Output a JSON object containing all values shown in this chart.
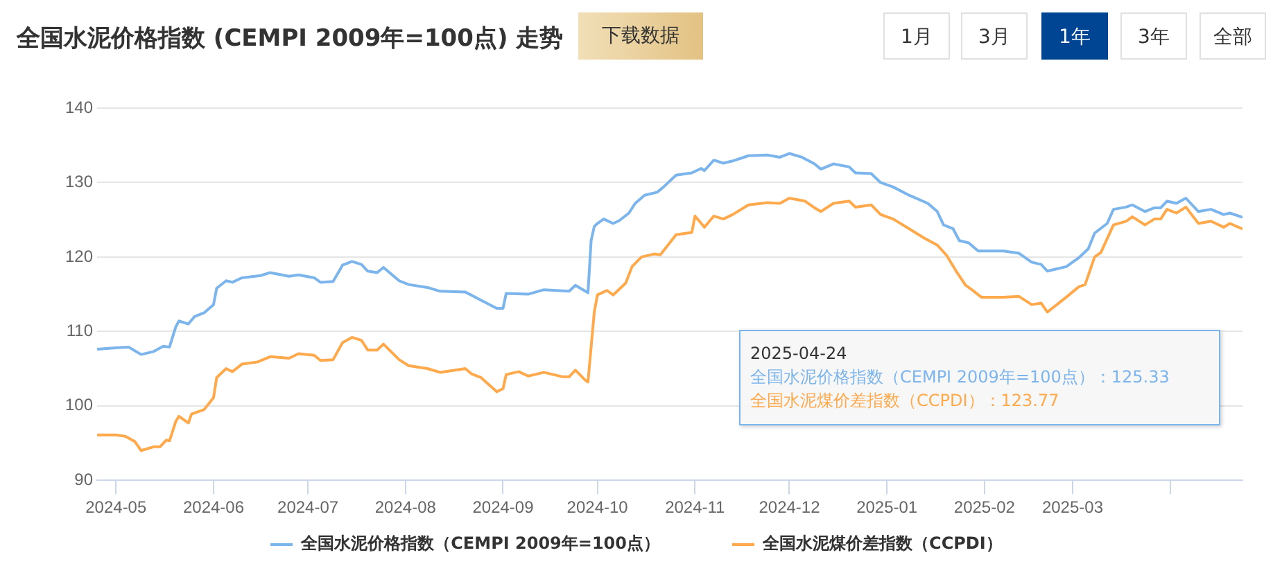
{
  "chart_data": {
    "type": "line",
    "title": "全国水泥价格指数 (CEMPI 2009年=100点) 走势",
    "annotations": [
      "下载数据",
      "1月",
      "3月",
      "1年",
      "3年",
      "全部",
      "2025-04-24",
      "全国水泥价格指数（CEMPI 2009年=100点）：125.33",
      "全国水泥煤价差指数（CCPDI）：123.77"
    ],
    "xlim": [
      "2024-04-25",
      "2025-04-24"
    ],
    "xticks": [
      {
        "value": "2024-05-01",
        "label": "2024-05"
      },
      {
        "value": "2024-06-01",
        "label": "2024-06"
      },
      {
        "value": "2024-07-01",
        "label": "2024-07"
      },
      {
        "value": "2024-08-01",
        "label": "2024-08"
      },
      {
        "value": "2024-09-01",
        "label": "2024-09"
      },
      {
        "value": "2024-10-01",
        "label": "2024-10"
      },
      {
        "value": "2024-11-01",
        "label": "2024-11"
      },
      {
        "value": "2024-12-01",
        "label": "2024-12"
      },
      {
        "value": "2025-01-01",
        "label": "2025-01"
      },
      {
        "value": "2025-02-01",
        "label": "2025-02"
      },
      {
        "value": "2025-03-01",
        "label": "2025-03"
      },
      {
        "value": "2025-04-01",
        "label": null
      }
    ],
    "ylim": [
      90,
      140
    ],
    "yticks": [
      90,
      100,
      110,
      120,
      130,
      140
    ],
    "grid": "y",
    "legend": "bottom",
    "series": [
      {
        "name": "全国水泥价格指数（CEMPI 2009年=100点）",
        "color": "#7cb5ec",
        "x": [
          "2024-04-25",
          "2024-05-01",
          "2024-05-05",
          "2024-05-09",
          "2024-05-13",
          "2024-05-16",
          "2024-05-18",
          "2024-05-20",
          "2024-05-21",
          "2024-05-24",
          "2024-05-26",
          "2024-05-29",
          "2024-06-01",
          "2024-06-02",
          "2024-06-05",
          "2024-06-07",
          "2024-06-10",
          "2024-06-16",
          "2024-06-19",
          "2024-06-25",
          "2024-06-28",
          "2024-07-03",
          "2024-07-05",
          "2024-07-09",
          "2024-07-12",
          "2024-07-15",
          "2024-07-18",
          "2024-07-20",
          "2024-07-23",
          "2024-07-25",
          "2024-07-30",
          "2024-08-02",
          "2024-08-08",
          "2024-08-12",
          "2024-08-20",
          "2024-08-25",
          "2024-08-30",
          "2024-09-01",
          "2024-09-02",
          "2024-09-09",
          "2024-09-14",
          "2024-09-22",
          "2024-09-24",
          "2024-09-28",
          "2024-09-29",
          "2024-09-30",
          "2024-10-01",
          "2024-10-03",
          "2024-10-06",
          "2024-10-08",
          "2024-10-11",
          "2024-10-13",
          "2024-10-16",
          "2024-10-20",
          "2024-10-22",
          "2024-10-26",
          "2024-10-31",
          "2024-11-03",
          "2024-11-04",
          "2024-11-07",
          "2024-11-10",
          "2024-11-13",
          "2024-11-18",
          "2024-11-24",
          "2024-11-28",
          "2024-12-01",
          "2024-12-05",
          "2024-12-09",
          "2024-12-11",
          "2024-12-15",
          "2024-12-20",
          "2024-12-22",
          "2024-12-27",
          "2024-12-30",
          "2025-01-03",
          "2025-01-08",
          "2025-01-14",
          "2025-01-17",
          "2025-01-19",
          "2025-01-22",
          "2025-01-24",
          "2025-01-27",
          "2025-01-30",
          "2025-02-07",
          "2025-02-12",
          "2025-02-16",
          "2025-02-19",
          "2025-02-21",
          "2025-02-27",
          "2025-03-03",
          "2025-03-06",
          "2025-03-08",
          "2025-03-12",
          "2025-03-14",
          "2025-03-18",
          "2025-03-20",
          "2025-03-24",
          "2025-03-27",
          "2025-03-29",
          "2025-03-31",
          "2025-04-03",
          "2025-04-06",
          "2025-04-10",
          "2025-04-14",
          "2025-04-18",
          "2025-04-20",
          "2025-04-24"
        ],
        "values": [
          107.6,
          107.8,
          107.9,
          106.9,
          107.3,
          108.0,
          107.9,
          110.6,
          111.4,
          111.0,
          112.0,
          112.5,
          113.6,
          115.8,
          116.8,
          116.6,
          117.2,
          117.5,
          117.9,
          117.4,
          117.6,
          117.2,
          116.6,
          116.7,
          118.9,
          119.4,
          119.0,
          118.1,
          117.9,
          118.6,
          116.8,
          116.3,
          115.9,
          115.4,
          115.3,
          114.2,
          113.1,
          113.1,
          115.1,
          115.0,
          115.6,
          115.4,
          116.2,
          115.2,
          122.2,
          124.1,
          124.5,
          125.1,
          124.5,
          124.9,
          125.9,
          127.2,
          128.3,
          128.7,
          129.4,
          131.0,
          131.3,
          131.9,
          131.6,
          133.0,
          132.6,
          132.9,
          133.6,
          133.7,
          133.4,
          133.9,
          133.4,
          132.5,
          131.8,
          132.5,
          132.1,
          131.3,
          131.2,
          130.0,
          129.4,
          128.3,
          127.2,
          126.1,
          124.3,
          123.8,
          122.2,
          121.9,
          120.8,
          120.8,
          120.5,
          119.3,
          119.0,
          118.1,
          118.7,
          119.9,
          121.1,
          123.2,
          124.5,
          126.4,
          126.7,
          127.0,
          126.1,
          126.6,
          126.6,
          127.5,
          127.2,
          127.9,
          126.1,
          126.4,
          125.7,
          125.9,
          125.33
        ]
      },
      {
        "name": "全国水泥煤价差指数（CCPDI）",
        "color": "#ffa94d",
        "x": [
          "2024-04-25",
          "2024-05-01",
          "2024-05-04",
          "2024-05-07",
          "2024-05-09",
          "2024-05-13",
          "2024-05-15",
          "2024-05-17",
          "2024-05-18",
          "2024-05-20",
          "2024-05-21",
          "2024-05-24",
          "2024-05-25",
          "2024-05-29",
          "2024-06-01",
          "2024-06-02",
          "2024-06-05",
          "2024-06-07",
          "2024-06-10",
          "2024-06-15",
          "2024-06-19",
          "2024-06-25",
          "2024-06-28",
          "2024-07-03",
          "2024-07-05",
          "2024-07-09",
          "2024-07-12",
          "2024-07-15",
          "2024-07-18",
          "2024-07-20",
          "2024-07-23",
          "2024-07-25",
          "2024-07-30",
          "2024-08-02",
          "2024-08-08",
          "2024-08-12",
          "2024-08-20",
          "2024-08-22",
          "2024-08-25",
          "2024-08-30",
          "2024-09-01",
          "2024-09-02",
          "2024-09-06",
          "2024-09-09",
          "2024-09-14",
          "2024-09-20",
          "2024-09-22",
          "2024-09-24",
          "2024-09-27",
          "2024-09-28",
          "2024-09-30",
          "2024-10-01",
          "2024-10-04",
          "2024-10-06",
          "2024-10-10",
          "2024-10-12",
          "2024-10-15",
          "2024-10-19",
          "2024-10-21",
          "2024-10-26",
          "2024-10-31",
          "2024-11-01",
          "2024-11-04",
          "2024-11-07",
          "2024-11-10",
          "2024-11-13",
          "2024-11-18",
          "2024-11-24",
          "2024-11-28",
          "2024-12-01",
          "2024-12-06",
          "2024-12-09",
          "2024-12-11",
          "2024-12-15",
          "2024-12-20",
          "2024-12-22",
          "2024-12-27",
          "2024-12-30",
          "2025-01-03",
          "2025-01-08",
          "2025-01-13",
          "2025-01-17",
          "2025-01-20",
          "2025-01-23",
          "2025-01-26",
          "2025-01-28",
          "2025-01-31",
          "2025-02-07",
          "2025-02-12",
          "2025-02-16",
          "2025-02-19",
          "2025-02-21",
          "2025-02-27",
          "2025-03-03",
          "2025-03-05",
          "2025-03-08",
          "2025-03-10",
          "2025-03-14",
          "2025-03-18",
          "2025-03-20",
          "2025-03-24",
          "2025-03-27",
          "2025-03-29",
          "2025-03-31",
          "2025-04-03",
          "2025-04-06",
          "2025-04-10",
          "2025-04-14",
          "2025-04-18",
          "2025-04-20",
          "2025-04-24"
        ],
        "values": [
          96.1,
          96.1,
          95.9,
          95.2,
          94.0,
          94.5,
          94.5,
          95.4,
          95.3,
          97.9,
          98.6,
          97.7,
          98.9,
          99.5,
          101.1,
          103.8,
          105.0,
          104.6,
          105.6,
          105.9,
          106.6,
          106.4,
          107.0,
          106.8,
          106.1,
          106.2,
          108.5,
          109.2,
          108.8,
          107.5,
          107.5,
          108.3,
          106.2,
          105.4,
          105.0,
          104.5,
          105.0,
          104.3,
          103.8,
          101.9,
          102.3,
          104.2,
          104.6,
          104.0,
          104.5,
          103.9,
          103.9,
          104.8,
          103.5,
          103.2,
          112.6,
          114.9,
          115.5,
          114.9,
          116.5,
          118.7,
          120.0,
          120.4,
          120.3,
          123.0,
          123.3,
          125.5,
          124.0,
          125.5,
          125.1,
          125.7,
          127.0,
          127.3,
          127.2,
          127.9,
          127.5,
          126.6,
          126.1,
          127.2,
          127.5,
          126.7,
          127.0,
          125.7,
          125.1,
          123.8,
          122.5,
          121.6,
          120.2,
          118.1,
          116.2,
          115.6,
          114.6,
          114.6,
          114.7,
          113.6,
          113.8,
          112.6,
          114.6,
          116.0,
          116.3,
          120.0,
          120.6,
          124.3,
          124.8,
          125.4,
          124.3,
          125.1,
          125.1,
          126.4,
          125.9,
          126.7,
          124.5,
          124.8,
          124.0,
          124.5,
          123.77
        ]
      }
    ]
  }
}
